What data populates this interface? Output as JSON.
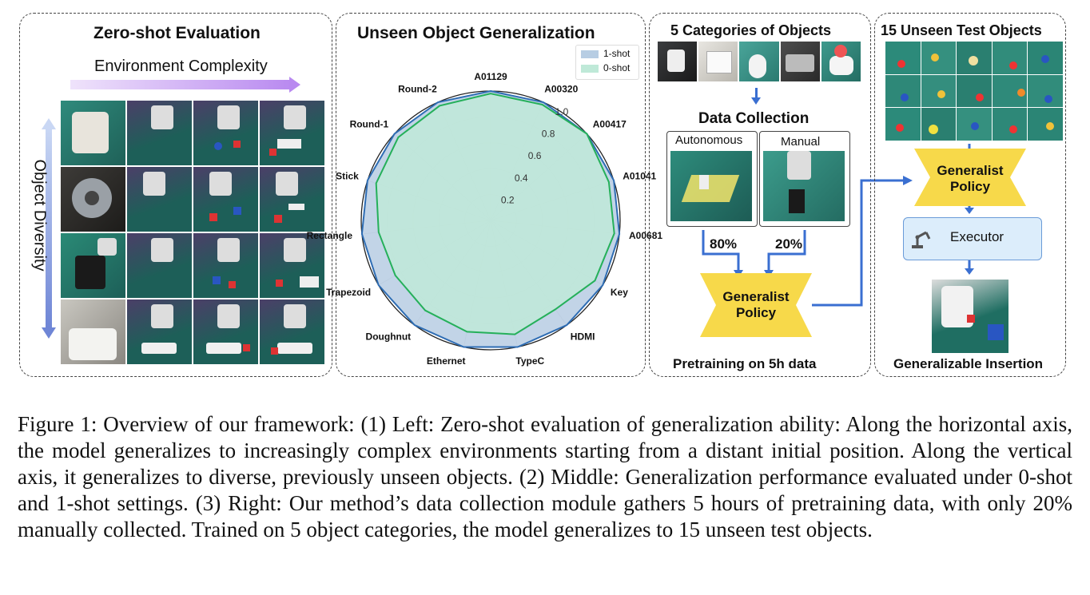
{
  "left": {
    "title": "Zero-shot Evaluation",
    "horizontal_label": "Environment Complexity",
    "vertical_label": "Object Diversity"
  },
  "middle": {
    "title": "Unseen Object Generalization",
    "legend": [
      "1-shot",
      "0-shot"
    ]
  },
  "chart_data": {
    "type": "radar",
    "title": "Unseen Object Generalization",
    "categories": [
      "A01129",
      "A00320",
      "A00417",
      "A01041",
      "A00681",
      "Key",
      "HDMI",
      "TypeC",
      "Ethernet",
      "Doughnut",
      "Trapezoid",
      "Rectangle",
      "Stick",
      "Round-1",
      "Round-2"
    ],
    "series": [
      {
        "name": "1-shot",
        "values": [
          1.0,
          1.0,
          1.0,
          1.0,
          1.0,
          1.0,
          1.0,
          1.0,
          1.0,
          1.0,
          1.0,
          1.0,
          1.0,
          1.0,
          1.0
        ],
        "color": "#b7cde3",
        "stroke": "#2e6db4"
      },
      {
        "name": "0-shot",
        "values": [
          0.98,
          0.98,
          1.0,
          0.96,
          0.96,
          0.93,
          0.85,
          0.9,
          0.88,
          0.86,
          0.85,
          0.87,
          0.93,
          0.96,
          0.97
        ],
        "color": "#bfe9d8",
        "stroke": "#25b05a"
      }
    ],
    "radial_ticks": [
      "0.2",
      "0.4",
      "0.6",
      "0.8",
      "1.0"
    ],
    "rlim": [
      0,
      1.0
    ],
    "grid": true,
    "legend_position": "top-right"
  },
  "right1": {
    "title": "5 Categories of Objects",
    "data_collection": "Data Collection",
    "autonomous": "Autonomous",
    "manual": "Manual",
    "pct_auto": "80%",
    "pct_manual": "20%",
    "policy": "Generalist Policy",
    "footer": "Pretraining on 5h data"
  },
  "right2": {
    "title": "15 Unseen Test Objects",
    "policy": "Generalist Policy",
    "executor": "Executor",
    "footer": "Generalizable Insertion"
  },
  "caption": "Figure 1: Overview of our framework: (1) Left: Zero-shot evaluation of generalization ability: Along the horizontal axis, the model generalizes to increasingly complex environments starting from a distant initial position. Along the vertical axis, it generalizes to diverse, previously unseen objects. (2) Middle: Generalization performance evaluated under 0-shot and 1-shot settings. (3) Right: Our method’s data collection module gathers 5 hours of pretraining data, with only 20% manually collected. Trained on 5 object categories, the model generalizes to 15 unseen test objects."
}
